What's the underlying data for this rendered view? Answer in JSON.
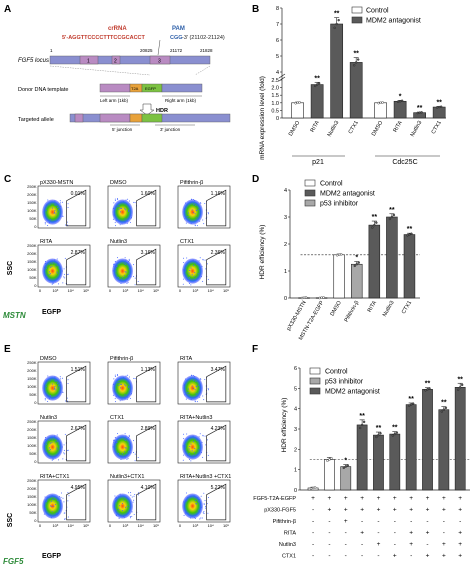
{
  "panels": {
    "A": {
      "letter": "A",
      "crRNA_label": "crRNA",
      "pam_label": "PAM",
      "seq_main": "5'-AGGTTCCCCTTTCCGCACCT",
      "seq_pam": "CGG",
      "seq_end": "-3' (21102-21124)",
      "coord_left": "1",
      "coord_1": "20825",
      "coord_2": "21172",
      "coord_right": "21828",
      "exon_1": "1",
      "exon_2": "2",
      "exon_3": "3",
      "locus_label": "FGF5 locus",
      "donor_label": "Donor DNA template",
      "left_arm": "Left arm (1kb)",
      "right_arm": "Right arm (1kb)",
      "t2a": "T2A",
      "egfp": "EGFP",
      "hdr": "HDR",
      "targeted_label": "Targeted allele",
      "junction_5": "5' junction",
      "junction_3": "3' junction"
    },
    "B": {
      "letter": "B",
      "legend": [
        "Control",
        "MDM2 antagonist"
      ],
      "ylabel": "mRNA expression level (fold)",
      "group_labels": [
        "p21",
        "Cdc25C"
      ]
    },
    "C": {
      "letter": "C",
      "plots": [
        {
          "title": "pX330-MSTN",
          "pct": "0.01%"
        },
        {
          "title": "DMSO",
          "pct": "1.60%"
        },
        {
          "title": "Pifithrin-β",
          "pct": "1.16%"
        },
        {
          "title": "RITA",
          "pct": "2.87%"
        },
        {
          "title": "Nutlin3",
          "pct": "3.16%"
        },
        {
          "title": "CTX1",
          "pct": "2.36%"
        }
      ],
      "y_ticks": [
        "250K",
        "200K",
        "150K",
        "100K",
        "50K",
        "0"
      ],
      "x_ticks": [
        "0",
        "10³",
        "10⁴",
        "10⁵"
      ],
      "ssc": "SSC",
      "egfp": "EGFP",
      "gene": "MSTN"
    },
    "D": {
      "letter": "D",
      "legend": [
        "Control",
        "MDM2 antagonist",
        "p53 inhibitor"
      ],
      "ylabel": "HDR efficiency (%)"
    },
    "E": {
      "letter": "E",
      "plots": [
        {
          "title": "DMSO",
          "pct": "1.51%"
        },
        {
          "title": "Pifithrin-β",
          "pct": "1.13%"
        },
        {
          "title": "RITA",
          "pct": "3.47%"
        },
        {
          "title": "Nutlin3",
          "pct": "2.67%"
        },
        {
          "title": "CTX1",
          "pct": "2.89%"
        },
        {
          "title": "RITA+Nutlin3",
          "pct": "4.23%"
        },
        {
          "title": "RITA+CTX1",
          "pct": "4.95%"
        },
        {
          "title": "Nutlin3+CTX1",
          "pct": "4.10%"
        },
        {
          "title": "RITA+Nutlin3 +CTX1",
          "pct": "5.22%"
        }
      ],
      "y_ticks": [
        "250K",
        "200K",
        "150K",
        "100K",
        "50K",
        "0"
      ],
      "x_ticks": [
        "0",
        "10³",
        "10⁴",
        "10⁵"
      ],
      "ssc": "SSC",
      "egfp": "EGFP",
      "gene": "FGF5"
    },
    "F": {
      "letter": "F",
      "legend": [
        "Control",
        "p53 inhibitor",
        "MDM2 antagonist"
      ],
      "ylabel": "HDR efficiency (%)",
      "table": [
        {
          "label": "FGF5-T2A-EGFP",
          "signs": [
            "+",
            "+",
            "+",
            "+",
            "+",
            "+",
            "+",
            "+",
            "+",
            "+"
          ]
        },
        {
          "label": "pX330-FGF5",
          "signs": [
            "-",
            "+",
            "+",
            "+",
            "+",
            "+",
            "+",
            "+",
            "+",
            "+"
          ]
        },
        {
          "label": "Pifithrin-β",
          "signs": [
            "-",
            "-",
            "+",
            "-",
            "-",
            "-",
            "-",
            "-",
            "-",
            "-"
          ]
        },
        {
          "label": "RITA",
          "signs": [
            "-",
            "-",
            "-",
            "+",
            "-",
            "-",
            "+",
            "+",
            "-",
            "+"
          ]
        },
        {
          "label": "Nutlin3",
          "signs": [
            "-",
            "-",
            "-",
            "-",
            "+",
            "-",
            "+",
            "-",
            "+",
            "+"
          ]
        },
        {
          "label": "CTX1",
          "signs": [
            "-",
            "-",
            "-",
            "-",
            "-",
            "+",
            "-",
            "+",
            "+",
            "+"
          ]
        }
      ]
    }
  },
  "colors": {
    "control": "#ffffff",
    "mdm2": "#5a5a5a",
    "p53": "#a8a8a8",
    "locus_blue": "#8a8fd0",
    "exon_purple": "#b98bc2",
    "egfp_green": "#7cc242",
    "t2a_orange": "#e8a23a",
    "crRNA_red": "#c0392b",
    "pam_blue": "#2c5ea8"
  },
  "chart_data": [
    {
      "panel": "B",
      "type": "bar",
      "categories": [
        "DMSO",
        "RITA",
        "Nutlin3",
        "CTX1",
        "DMSO",
        "RITA",
        "Nutlin3",
        "CTX1"
      ],
      "groups": [
        "p21",
        "p21",
        "p21",
        "p21",
        "Cdc25C",
        "Cdc25C",
        "Cdc25C",
        "Cdc25C"
      ],
      "values": [
        1.0,
        2.2,
        7.0,
        4.6,
        1.0,
        1.1,
        0.35,
        0.72
      ],
      "errors": [
        0.05,
        0.15,
        0.4,
        0.3,
        0.04,
        0.06,
        0.04,
        0.04
      ],
      "significance": [
        "",
        "**",
        "**",
        "**",
        "",
        "*",
        "**",
        "**"
      ],
      "series_of_bar": [
        "Control",
        "MDM2 antagonist",
        "MDM2 antagonist",
        "MDM2 antagonist",
        "Control",
        "MDM2 antagonist",
        "MDM2 antagonist",
        "MDM2 antagonist"
      ],
      "y_scale": "broken",
      "y_ticks": [
        "0",
        "0.5",
        "1.0",
        "1.5",
        "2.0",
        "2.5",
        "4",
        "5",
        "6",
        "7",
        "8"
      ],
      "ylabel": "mRNA expression level (fold)"
    },
    {
      "panel": "D",
      "type": "bar",
      "categories": [
        "pX330-MSTN",
        "MSTN-T2A-EGFP",
        "DMSO",
        "Pifithrin-β",
        "RITA",
        "Nutlin3",
        "CTX1"
      ],
      "values": [
        0.01,
        0.01,
        1.6,
        1.25,
        2.7,
        3.0,
        2.35
      ],
      "errors": [
        0.02,
        0.02,
        0.03,
        0.1,
        0.15,
        0.12,
        0.05
      ],
      "significance": [
        "",
        "",
        "",
        "*",
        "**",
        "**",
        "**"
      ],
      "series_of_bar": [
        "Control",
        "Control",
        "Control",
        "p53 inhibitor",
        "MDM2 antagonist",
        "MDM2 antagonist",
        "MDM2 antagonist"
      ],
      "ylim": [
        0,
        4
      ],
      "y_ticks": [
        "0",
        "1",
        "2",
        "3",
        "4"
      ],
      "reference_line": 1.6,
      "ylabel": "HDR efficiency (%)"
    },
    {
      "panel": "F",
      "type": "bar",
      "values": [
        0.1,
        1.5,
        1.15,
        3.2,
        2.7,
        2.75,
        4.2,
        4.95,
        3.95,
        5.05
      ],
      "errors": [
        0.04,
        0.1,
        0.1,
        0.25,
        0.15,
        0.12,
        0.08,
        0.08,
        0.15,
        0.2
      ],
      "significance": [
        "",
        "",
        "*",
        "**",
        "**",
        "**",
        "**",
        "**",
        "**",
        "**"
      ],
      "series_of_bar": [
        "Control",
        "Control",
        "p53 inhibitor",
        "MDM2 antagonist",
        "MDM2 antagonist",
        "MDM2 antagonist",
        "MDM2 antagonist",
        "MDM2 antagonist",
        "MDM2 antagonist",
        "MDM2 antagonist"
      ],
      "ylim": [
        0,
        6
      ],
      "y_ticks": [
        "0",
        "1",
        "2",
        "3",
        "4",
        "5",
        "6"
      ],
      "reference_line": 1.5,
      "ylabel": "HDR efficiency (%)"
    }
  ]
}
